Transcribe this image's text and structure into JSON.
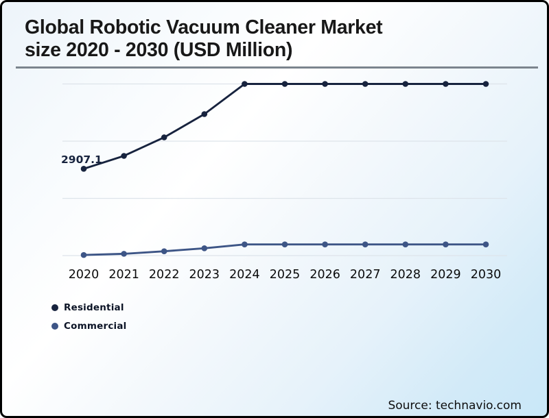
{
  "title": {
    "line1": "Global Robotic Vacuum Cleaner Market",
    "line2": "size 2020 - 2030 (USD Million)"
  },
  "source": "Source: technavio.com",
  "colors": {
    "residential": "#17233e",
    "commercial": "#3d5586",
    "gridline": "#dde4ea",
    "axis_label": "#0b0b0b",
    "divider": "#7b848d"
  },
  "chart_data": {
    "type": "line",
    "x": [
      "2020",
      "2021",
      "2022",
      "2023",
      "2024",
      "2025",
      "2026",
      "2027",
      "2028",
      "2029",
      "2030"
    ],
    "series": [
      {
        "name": "Residential",
        "color": "#17233e",
        "values": [
          2907.1,
          3340,
          3960,
          4740,
          5750,
          5750,
          5750,
          5750,
          5750,
          5750,
          5750
        ]
      },
      {
        "name": "Commercial",
        "color": "#3d5586",
        "values": [
          20,
          60,
          145,
          245,
          375,
          375,
          375,
          375,
          375,
          375,
          375
        ]
      }
    ],
    "title": "Global Robotic Vacuum Cleaner Market size 2020 - 2030 (USD Million)",
    "xlabel": "",
    "ylabel": "",
    "ylim": [
      0,
      5750
    ],
    "gridlines": 4,
    "grid": "horizontal-only",
    "y_axis_labels_shown": false,
    "legend_position": "bottom-left",
    "annotations": [
      {
        "text": "2907.1",
        "series": "Residential",
        "x": "2020",
        "position": "above-left-of-first-point"
      }
    ]
  }
}
